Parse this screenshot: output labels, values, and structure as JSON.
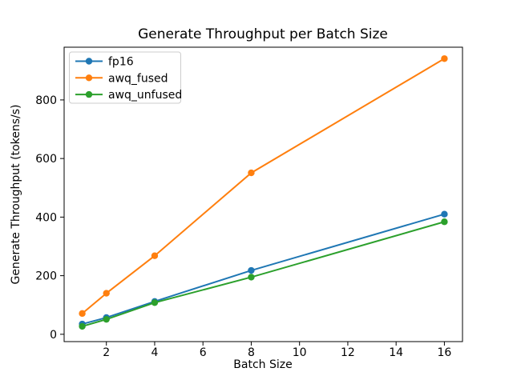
{
  "chart_data": {
    "type": "line",
    "title": "Generate Throughput per Batch Size",
    "xlabel": "Batch Size",
    "ylabel": "Generate Throughput (tokens/s)",
    "x": [
      1,
      2,
      4,
      8,
      16
    ],
    "series": [
      {
        "name": "fp16",
        "color": "#1f77b4",
        "values": [
          35,
          57,
          112,
          218,
          410
        ]
      },
      {
        "name": "awq_fused",
        "color": "#ff7f0e",
        "values": [
          71,
          140,
          268,
          551,
          941
        ]
      },
      {
        "name": "awq_unfused",
        "color": "#2ca02c",
        "values": [
          27,
          51,
          108,
          195,
          384
        ]
      }
    ],
    "xticks": [
      2,
      4,
      6,
      8,
      10,
      12,
      14,
      16
    ],
    "yticks": [
      0,
      200,
      400,
      600,
      800
    ],
    "xlim": [
      0.25,
      16.75
    ],
    "ylim": [
      -25,
      980
    ],
    "grid": false,
    "marker": "o",
    "legend_position": "upper left",
    "legend_border_color": "#cccccc",
    "line_color_axes": "#000000",
    "background_color": "#ffffff"
  }
}
